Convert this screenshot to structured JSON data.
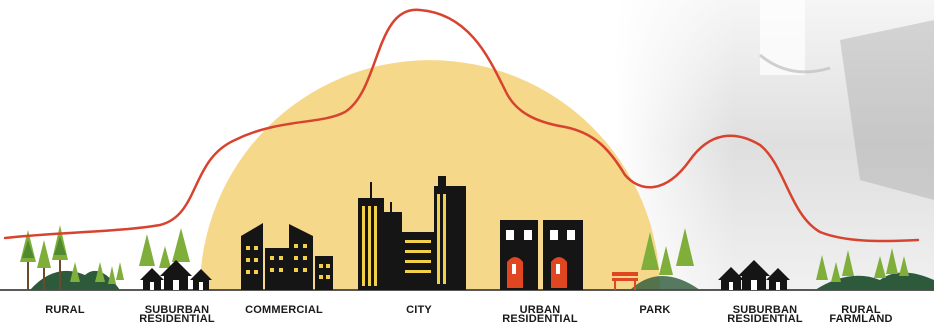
{
  "colors": {
    "sun": "#f5d88a",
    "curve": "#d8432f",
    "building": "#151515",
    "window": "#f3d04a",
    "door": "#e0461f",
    "tree": "#2f6a2d",
    "tree_light": "#7fae3a",
    "hill": "#2d5a3a",
    "fog": "#cfcfcf"
  },
  "zones": [
    {
      "label": "RURAL",
      "icon": "rural-trees-icon"
    },
    {
      "label": "SUBURBAN\nRESIDENTIAL",
      "icon": "houses-icon"
    },
    {
      "label": "COMMERCIAL",
      "icon": "office-buildings-icon"
    },
    {
      "label": "CITY",
      "icon": "skyscrapers-icon"
    },
    {
      "label": "URBAN\nRESIDENTIAL",
      "icon": "townhouses-icon"
    },
    {
      "label": "PARK",
      "icon": "park-bench-icon"
    },
    {
      "label": "SUBURBAN\nRESIDENTIAL",
      "icon": "houses-icon"
    },
    {
      "label": "RURAL\nFARMLAND",
      "icon": "farmland-trees-icon"
    }
  ]
}
